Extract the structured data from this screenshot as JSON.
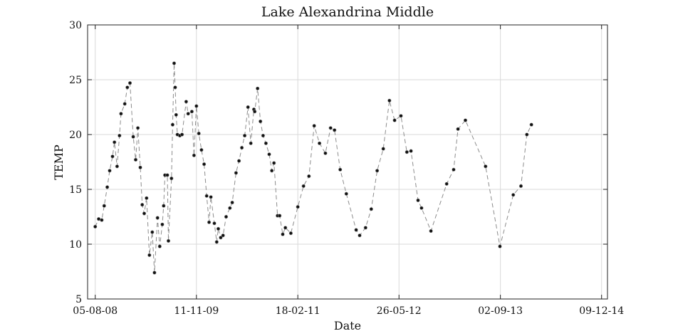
{
  "chart_data": {
    "type": "scatter",
    "title": "Lake Alexandrina Middle",
    "xlabel": "Date",
    "ylabel": "TEMP",
    "ylim": [
      5,
      30
    ],
    "yticks": [
      5,
      10,
      15,
      20,
      25,
      30
    ],
    "xlim": [
      "2008-07-01",
      "2015-01-05"
    ],
    "xticks": [
      {
        "date": "2008-08-05",
        "label": "05-08-08"
      },
      {
        "date": "2009-11-11",
        "label": "11-11-09"
      },
      {
        "date": "2011-02-18",
        "label": "18-02-11"
      },
      {
        "date": "2012-05-26",
        "label": "26-05-12"
      },
      {
        "date": "2013-09-02",
        "label": "02-09-13"
      },
      {
        "date": "2014-12-09",
        "label": "09-12-14"
      }
    ],
    "grid": true,
    "series": [
      {
        "style": "dashed line with point markers",
        "points": [
          [
            "2008-08-05",
            11.6
          ],
          [
            "2008-08-21",
            12.3
          ],
          [
            "2008-09-04",
            12.2
          ],
          [
            "2008-09-15",
            13.5
          ],
          [
            "2008-09-29",
            15.2
          ],
          [
            "2008-10-10",
            16.7
          ],
          [
            "2008-10-23",
            18.0
          ],
          [
            "2008-11-01",
            19.3
          ],
          [
            "2008-11-13",
            17.1
          ],
          [
            "2008-11-24",
            19.9
          ],
          [
            "2008-12-01",
            21.9
          ],
          [
            "2008-12-18",
            22.8
          ],
          [
            "2008-12-30",
            24.3
          ],
          [
            "2009-01-11",
            24.7
          ],
          [
            "2009-01-26",
            19.8
          ],
          [
            "2009-02-06",
            17.7
          ],
          [
            "2009-02-16",
            20.6
          ],
          [
            "2009-02-27",
            17.0
          ],
          [
            "2009-03-08",
            13.6
          ],
          [
            "2009-03-17",
            12.8
          ],
          [
            "2009-03-28",
            14.2
          ],
          [
            "2009-04-10",
            9.0
          ],
          [
            "2009-04-23",
            11.1
          ],
          [
            "2009-05-03",
            7.4
          ],
          [
            "2009-05-17",
            12.4
          ],
          [
            "2009-05-27",
            9.8
          ],
          [
            "2009-06-08",
            11.8
          ],
          [
            "2009-06-14",
            13.5
          ],
          [
            "2009-06-20",
            16.3
          ],
          [
            "2009-07-01",
            16.3
          ],
          [
            "2009-07-06",
            10.3
          ],
          [
            "2009-07-20",
            16.0
          ],
          [
            "2009-07-25",
            20.9
          ],
          [
            "2009-08-01",
            26.5
          ],
          [
            "2009-08-06",
            24.3
          ],
          [
            "2009-08-10",
            21.8
          ],
          [
            "2009-08-16",
            20.0
          ],
          [
            "2009-08-27",
            19.9
          ],
          [
            "2009-09-06",
            20.0
          ],
          [
            "2009-09-25",
            23.0
          ],
          [
            "2009-10-04",
            21.9
          ],
          [
            "2009-10-21",
            22.1
          ],
          [
            "2009-10-31",
            18.1
          ],
          [
            "2009-11-11",
            22.6
          ],
          [
            "2009-11-22",
            20.1
          ],
          [
            "2009-12-04",
            18.6
          ],
          [
            "2009-12-16",
            17.3
          ],
          [
            "2009-12-28",
            14.4
          ],
          [
            "2010-01-08",
            12.0
          ],
          [
            "2010-01-16",
            14.3
          ],
          [
            "2010-02-01",
            11.9
          ],
          [
            "2010-02-12",
            10.2
          ],
          [
            "2010-02-19",
            11.4
          ],
          [
            "2010-03-02",
            10.6
          ],
          [
            "2010-03-13",
            10.8
          ],
          [
            "2010-03-27",
            12.5
          ],
          [
            "2010-04-13",
            13.3
          ],
          [
            "2010-04-24",
            13.8
          ],
          [
            "2010-05-11",
            16.5
          ],
          [
            "2010-05-25",
            17.6
          ],
          [
            "2010-06-07",
            18.8
          ],
          [
            "2010-06-20",
            19.9
          ],
          [
            "2010-07-05",
            22.5
          ],
          [
            "2010-07-18",
            19.2
          ],
          [
            "2010-08-01",
            22.3
          ],
          [
            "2010-08-05",
            22.1
          ],
          [
            "2010-08-18",
            24.2
          ],
          [
            "2010-08-31",
            21.2
          ],
          [
            "2010-09-12",
            19.9
          ],
          [
            "2010-09-25",
            19.2
          ],
          [
            "2010-10-10",
            18.2
          ],
          [
            "2010-10-22",
            16.7
          ],
          [
            "2010-11-01",
            17.4
          ],
          [
            "2010-11-17",
            12.6
          ],
          [
            "2010-11-27",
            12.6
          ],
          [
            "2010-12-11",
            10.9
          ],
          [
            "2010-12-23",
            11.5
          ],
          [
            "2011-01-17",
            11.0
          ],
          [
            "2011-02-18",
            13.4
          ],
          [
            "2011-03-16",
            15.3
          ],
          [
            "2011-04-10",
            16.2
          ],
          [
            "2011-05-04",
            20.8
          ],
          [
            "2011-05-28",
            19.2
          ],
          [
            "2011-06-24",
            18.3
          ],
          [
            "2011-07-18",
            20.6
          ],
          [
            "2011-08-05",
            20.4
          ],
          [
            "2011-08-31",
            16.8
          ],
          [
            "2011-09-28",
            14.6
          ],
          [
            "2011-11-12",
            11.3
          ],
          [
            "2011-11-28",
            10.8
          ],
          [
            "2011-12-25",
            11.5
          ],
          [
            "2012-01-20",
            13.2
          ],
          [
            "2012-02-16",
            16.7
          ],
          [
            "2012-03-15",
            18.7
          ],
          [
            "2012-04-12",
            23.1
          ],
          [
            "2012-05-06",
            21.3
          ],
          [
            "2012-06-04",
            21.7
          ],
          [
            "2012-07-01",
            18.4
          ],
          [
            "2012-07-20",
            18.5
          ],
          [
            "2012-08-21",
            14.0
          ],
          [
            "2012-09-06",
            13.3
          ],
          [
            "2012-10-19",
            11.2
          ],
          [
            "2012-12-30",
            15.5
          ],
          [
            "2013-01-31",
            16.8
          ],
          [
            "2013-02-20",
            20.5
          ],
          [
            "2013-03-26",
            21.3
          ],
          [
            "2013-06-26",
            17.1
          ],
          [
            "2013-08-31",
            9.8
          ],
          [
            "2013-10-31",
            14.5
          ],
          [
            "2013-12-05",
            15.3
          ],
          [
            "2014-01-01",
            20.0
          ],
          [
            "2014-01-22",
            20.9
          ]
        ]
      }
    ]
  }
}
